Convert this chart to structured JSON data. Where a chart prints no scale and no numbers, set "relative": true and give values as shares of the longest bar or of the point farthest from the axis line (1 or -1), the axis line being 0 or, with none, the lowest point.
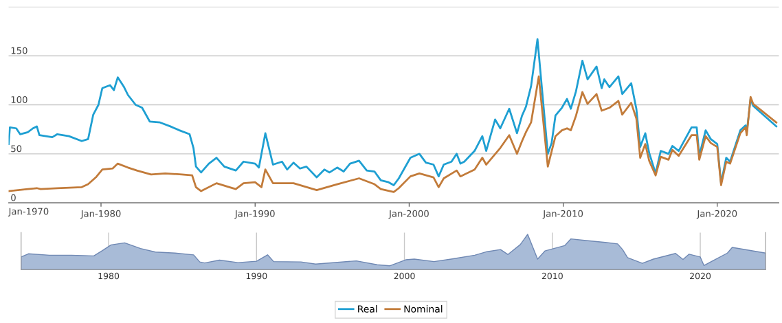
{
  "chart_data": [
    {
      "type": "line",
      "xlim": [
        "1974-01",
        "2024-01"
      ],
      "xticks": [
        {
          "value": "1980-01",
          "label": "Jan-1980"
        },
        {
          "value": "1990-01",
          "label": "Jan-1990"
        },
        {
          "value": "2000-01",
          "label": "Jan-2000"
        },
        {
          "value": "2010-01",
          "label": "Jan-2010"
        },
        {
          "value": "2020-01",
          "label": "Jan-2020"
        }
      ],
      "ylim": [
        0,
        200
      ],
      "yticks": [
        0,
        50,
        100,
        150,
        {
          "value": 200,
          "label": null
        }
      ],
      "grid": "y",
      "legend": "bottom",
      "annotations": [
        "Jan-1970"
      ],
      "series": [
        {
          "name": "Real",
          "color": "#1e9fd2",
          "x": [
            "1974-01",
            "1974-02",
            "1974-07",
            "1974-10",
            "1975-04",
            "1975-08",
            "1975-11",
            "1976-01",
            "1976-11",
            "1977-03",
            "1977-12",
            "1978-10",
            "1979-03",
            "1979-07",
            "1979-11",
            "1980-02",
            "1980-08",
            "1980-11",
            "1981-02",
            "1981-07",
            "1981-10",
            "1982-04",
            "1982-09",
            "1983-03",
            "1983-11",
            "1984-07",
            "1985-02",
            "1985-10",
            "1986-01",
            "1986-03",
            "1986-07",
            "1987-01",
            "1987-07",
            "1988-01",
            "1988-10",
            "1989-04",
            "1990-01",
            "1990-04",
            "1990-09",
            "1991-03",
            "1991-10",
            "1992-02",
            "1992-07",
            "1992-12",
            "1993-05",
            "1994-01",
            "1994-07",
            "1994-11",
            "1995-05",
            "1995-10",
            "1996-03",
            "1996-10",
            "1997-04",
            "1997-10",
            "1998-03",
            "1998-09",
            "1999-01",
            "1999-05",
            "2000-02",
            "2000-09",
            "2001-02",
            "2001-08",
            "2001-12",
            "2002-04",
            "2002-10",
            "2003-02",
            "2003-05",
            "2003-08",
            "2004-04",
            "2004-10",
            "2005-01",
            "2005-08",
            "2005-12",
            "2006-07",
            "2007-01",
            "2007-05",
            "2007-08",
            "2007-12",
            "2008-05",
            "2009-01",
            "2009-04",
            "2009-07",
            "2009-12",
            "2010-04",
            "2010-07",
            "2010-11",
            "2011-04",
            "2011-08",
            "2012-03",
            "2012-07",
            "2012-09",
            "2013-01",
            "2013-08",
            "2013-11",
            "2014-06",
            "2014-10",
            "2015-01",
            "2015-05",
            "2015-08",
            "2016-01",
            "2016-05",
            "2016-11",
            "2017-02",
            "2017-07",
            "2018-05",
            "2018-09",
            "2018-11",
            "2019-04",
            "2019-08",
            "2020-01",
            "2020-04",
            "2020-08",
            "2020-11",
            "2021-07",
            "2021-11",
            "2021-12",
            "2022-03",
            "2022-05",
            "2023-11"
          ],
          "values": [
            60,
            77,
            76,
            70,
            72,
            76,
            78,
            69,
            67,
            70,
            68,
            63,
            65,
            90,
            100,
            117,
            120,
            115,
            128,
            118,
            110,
            100,
            97,
            83,
            82,
            78,
            74,
            70,
            56,
            37,
            31,
            40,
            46,
            37,
            33,
            42,
            40,
            36,
            71,
            39,
            42,
            34,
            41,
            35,
            37,
            26,
            34,
            31,
            36,
            32,
            40,
            43,
            33,
            32,
            23,
            21,
            18,
            25,
            46,
            50,
            41,
            39,
            27,
            39,
            42,
            50,
            40,
            42,
            53,
            68,
            53,
            85,
            76,
            96,
            71,
            89,
            98,
            119,
            167,
            50,
            61,
            89,
            97,
            106,
            96,
            114,
            145,
            126,
            139,
            117,
            126,
            118,
            129,
            111,
            122,
            96,
            57,
            71,
            51,
            30,
            53,
            50,
            58,
            53,
            77,
            77,
            48,
            74,
            65,
            60,
            20,
            46,
            42,
            74,
            79,
            72,
            106,
            99,
            78
          ]
        },
        {
          "name": "Nominal",
          "color": "#c27b3a",
          "x": [
            "1974-01",
            "1975-04",
            "1975-11",
            "1976-02",
            "1977-03",
            "1978-10",
            "1979-03",
            "1979-09",
            "1980-02",
            "1980-10",
            "1981-02",
            "1981-10",
            "1982-05",
            "1983-04",
            "1984-03",
            "1985-04",
            "1985-12",
            "1986-03",
            "1986-07",
            "1987-07",
            "1988-05",
            "1988-10",
            "1989-04",
            "1990-01",
            "1990-06",
            "1990-09",
            "1991-03",
            "1991-11",
            "1992-07",
            "1994-01",
            "1995-05",
            "1996-10",
            "1997-10",
            "1998-03",
            "1999-01",
            "1999-05",
            "2000-02",
            "2000-09",
            "2001-08",
            "2001-12",
            "2002-04",
            "2003-02",
            "2003-05",
            "2004-04",
            "2004-10",
            "2005-01",
            "2005-12",
            "2006-07",
            "2007-01",
            "2007-05",
            "2007-08",
            "2007-12",
            "2008-06",
            "2009-01",
            "2009-07",
            "2009-12",
            "2010-04",
            "2010-07",
            "2010-11",
            "2011-04",
            "2011-08",
            "2012-03",
            "2012-07",
            "2013-01",
            "2013-08",
            "2013-11",
            "2014-06",
            "2014-10",
            "2015-01",
            "2015-05",
            "2015-08",
            "2016-01",
            "2016-05",
            "2016-11",
            "2017-02",
            "2017-07",
            "2018-05",
            "2018-09",
            "2018-11",
            "2019-04",
            "2019-08",
            "2020-01",
            "2020-04",
            "2020-08",
            "2020-11",
            "2021-07",
            "2021-11",
            "2021-12",
            "2022-03",
            "2022-05",
            "2023-11"
          ],
          "values": [
            12,
            14,
            15,
            14,
            15,
            16,
            19,
            26,
            34,
            35,
            40,
            36,
            33,
            29,
            30,
            29,
            28,
            16,
            12,
            20,
            16,
            14,
            20,
            21,
            16,
            34,
            20,
            20,
            20,
            13,
            19,
            25,
            19,
            14,
            11,
            15,
            27,
            30,
            26,
            16,
            25,
            33,
            27,
            34,
            46,
            39,
            56,
            69,
            50,
            63,
            72,
            82,
            129,
            37,
            68,
            74,
            76,
            74,
            89,
            113,
            101,
            111,
            94,
            97,
            104,
            90,
            102,
            86,
            46,
            60,
            43,
            28,
            47,
            44,
            54,
            48,
            69,
            69,
            44,
            68,
            61,
            57,
            18,
            42,
            40,
            71,
            77,
            69,
            108,
            101,
            82
          ]
        }
      ]
    },
    {
      "type": "area",
      "relative": true,
      "xlim": [
        "1974-02",
        "2024-06"
      ],
      "xticks": [
        {
          "value": "1980-01",
          "label": "1980"
        },
        {
          "value": "1990-01",
          "label": "1990"
        },
        {
          "value": "2000-01",
          "label": "2000"
        },
        {
          "value": "2010-01",
          "label": "2010"
        },
        {
          "value": "2020-01",
          "label": "2020"
        }
      ],
      "grid": "x",
      "series": [
        {
          "color": "#a8bbd7",
          "x": [
            "1974-02",
            "1974-08",
            "1976-01",
            "1977-07",
            "1979-01",
            "1979-08",
            "1980-03",
            "1981-02",
            "1982-03",
            "1983-03",
            "1984-07",
            "1985-10",
            "1986-03",
            "1986-07",
            "1987-07",
            "1988-10",
            "1990-01",
            "1990-10",
            "1991-03",
            "1993-01",
            "1994-01",
            "1996-10",
            "1998-03",
            "1999-01",
            "2000-02",
            "2000-09",
            "2002-01",
            "2003-03",
            "2004-10",
            "2005-08",
            "2006-07",
            "2007-01",
            "2007-11",
            "2008-05",
            "2009-01",
            "2009-07",
            "2010-11",
            "2011-04",
            "2012-03",
            "2013-08",
            "2014-06",
            "2014-10",
            "2015-02",
            "2016-02",
            "2016-11",
            "2018-05",
            "2018-11",
            "2019-04",
            "2020-01",
            "2020-04",
            "2020-11",
            "2021-11",
            "2022-03",
            "2024-06"
          ],
          "values": [
            0.36,
            0.45,
            0.41,
            0.41,
            0.39,
            0.54,
            0.7,
            0.76,
            0.6,
            0.5,
            0.47,
            0.42,
            0.22,
            0.19,
            0.27,
            0.2,
            0.24,
            0.42,
            0.23,
            0.22,
            0.16,
            0.25,
            0.14,
            0.11,
            0.28,
            0.3,
            0.23,
            0.3,
            0.41,
            0.51,
            0.57,
            0.43,
            0.71,
            1.0,
            0.3,
            0.53,
            0.68,
            0.87,
            0.83,
            0.77,
            0.73,
            0.57,
            0.34,
            0.18,
            0.3,
            0.46,
            0.29,
            0.44,
            0.36,
            0.12,
            0.25,
            0.47,
            0.63,
            0.47
          ]
        }
      ]
    }
  ]
}
